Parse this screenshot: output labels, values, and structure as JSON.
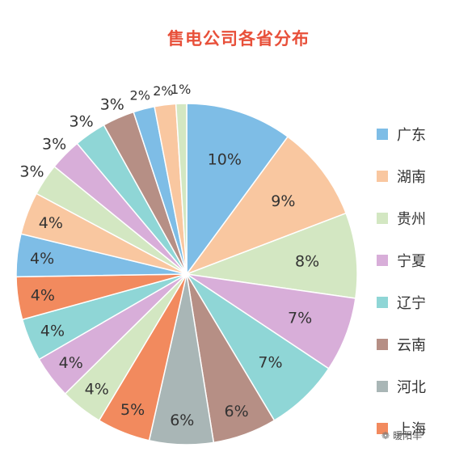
{
  "chart_data": {
    "type": "pie",
    "title": "售电公司各省分布",
    "start_angle_deg": 0,
    "direction": "clockwise",
    "slices": [
      {
        "label": "广东",
        "value": 10,
        "text": "10%",
        "color": "#7ebde6",
        "in_legend": true
      },
      {
        "label": "湖南",
        "value": 9,
        "text": "9%",
        "color": "#f9c7a0",
        "in_legend": true
      },
      {
        "label": "贵州",
        "value": 8,
        "text": "8%",
        "color": "#d3e7c2",
        "in_legend": true
      },
      {
        "label": "宁夏",
        "value": 7,
        "text": "7%",
        "color": "#d8aed9",
        "in_legend": true
      },
      {
        "label": "辽宁",
        "value": 7,
        "text": "7%",
        "color": "#8fd6d6",
        "in_legend": true
      },
      {
        "label": "云南",
        "value": 6,
        "text": "6%",
        "color": "#b68f85",
        "in_legend": true
      },
      {
        "label": "河北",
        "value": 6,
        "text": "6%",
        "color": "#a9b6b6",
        "in_legend": true
      },
      {
        "label": "上海",
        "value": 5,
        "text": "5%",
        "color": "#f28a5e",
        "in_legend": true
      },
      {
        "label": "",
        "value": 4,
        "text": "4%",
        "color": "#d3e7c2",
        "in_legend": false
      },
      {
        "label": "",
        "value": 4,
        "text": "4%",
        "color": "#d8aed9",
        "in_legend": false
      },
      {
        "label": "",
        "value": 4,
        "text": "4%",
        "color": "#8fd6d6",
        "in_legend": false
      },
      {
        "label": "",
        "value": 4,
        "text": "4%",
        "color": "#f28a5e",
        "in_legend": false
      },
      {
        "label": "",
        "value": 4,
        "text": "4%",
        "color": "#7ebde6",
        "in_legend": false
      },
      {
        "label": "",
        "value": 4,
        "text": "4%",
        "color": "#f9c7a0",
        "in_legend": false
      },
      {
        "label": "",
        "value": 3,
        "text": "3%",
        "color": "#d3e7c2",
        "in_legend": false
      },
      {
        "label": "",
        "value": 3,
        "text": "3%",
        "color": "#d8aed9",
        "in_legend": false
      },
      {
        "label": "",
        "value": 3,
        "text": "3%",
        "color": "#8fd6d6",
        "in_legend": false
      },
      {
        "label": "",
        "value": 3,
        "text": "3%",
        "color": "#b68f85",
        "in_legend": false
      },
      {
        "label": "",
        "value": 2,
        "text": "2%",
        "color": "#7ebde6",
        "in_legend": false
      },
      {
        "label": "",
        "value": 2,
        "text": "2%",
        "color": "#f9c7a0",
        "in_legend": false
      },
      {
        "label": "",
        "value": 1,
        "text": "1%",
        "color": "#d3e7c2",
        "in_legend": false
      }
    ],
    "legend_position": "right",
    "label_color": "#333333",
    "border_color": "#ffffff"
  },
  "watermark": {
    "icon": "wechat-icon",
    "text": "暖阳羊"
  }
}
